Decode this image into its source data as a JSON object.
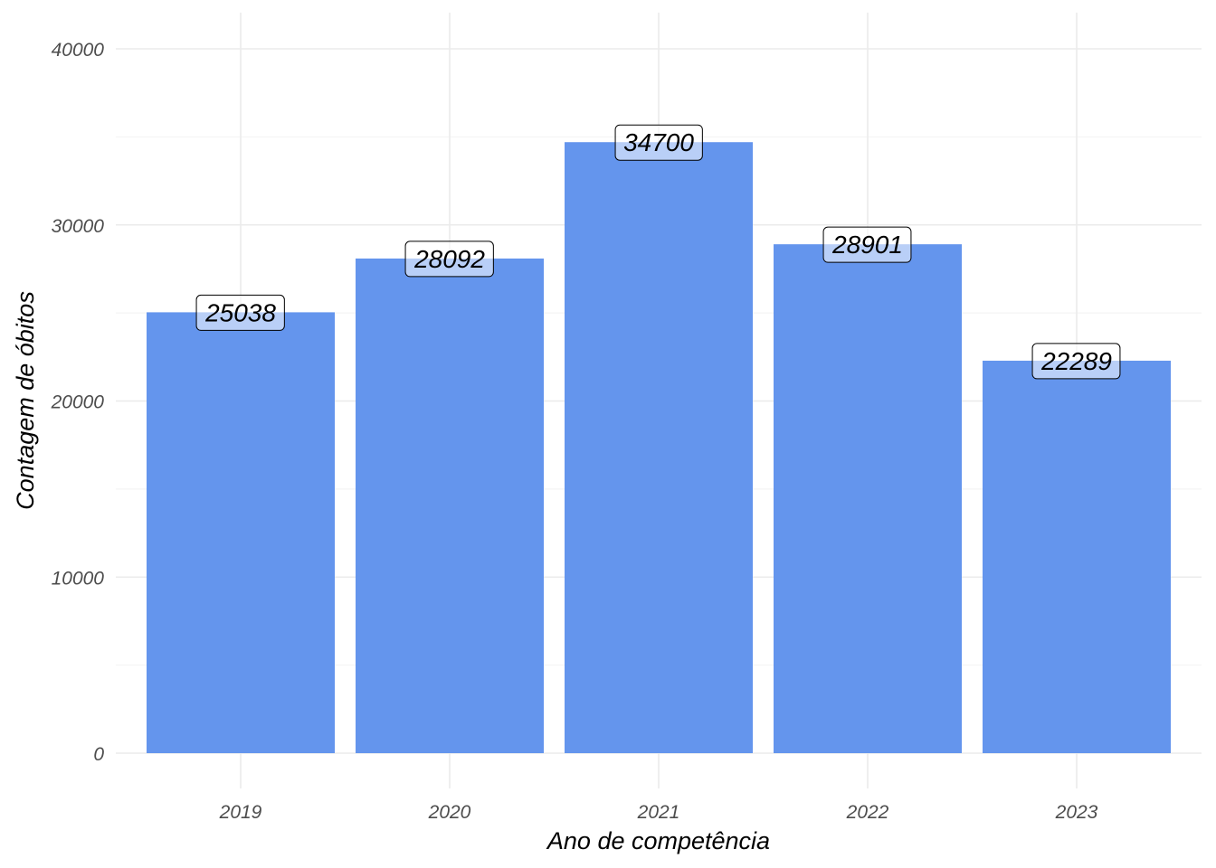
{
  "chart_data": {
    "type": "bar",
    "title": "",
    "xlabel": "Ano de competência",
    "ylabel": "Contagem de óbitos",
    "categories": [
      "2019",
      "2020",
      "2021",
      "2022",
      "2023"
    ],
    "values": [
      25038,
      28092,
      34700,
      28901,
      22289
    ],
    "data_labels": [
      "25038",
      "28092",
      "34700",
      "28901",
      "22289"
    ],
    "y_ticks": [
      0,
      10000,
      20000,
      30000,
      40000
    ],
    "y_tick_labels": [
      "0",
      "10000",
      "20000",
      "30000",
      "40000"
    ],
    "ylim": [
      0,
      40000
    ],
    "grid": true,
    "legend": "none",
    "bar_color": "#6495ED"
  }
}
